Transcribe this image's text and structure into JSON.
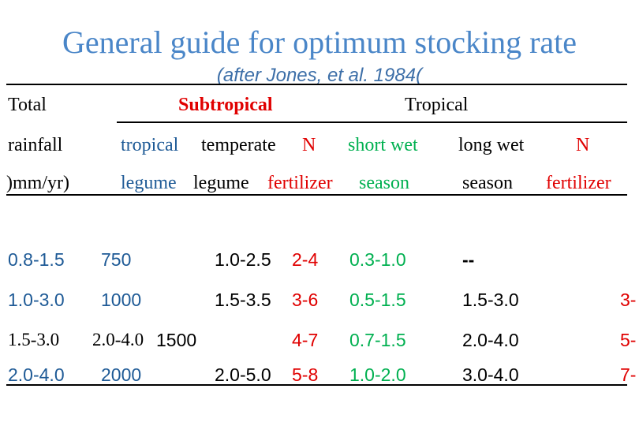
{
  "header": {
    "title": "General guide for optimum stocking rate",
    "subtitle": "(after Jones, et al. 1984("
  },
  "colors": {
    "title": "#4a86c8",
    "blue": "#1e5a96",
    "red": "#e00000",
    "green": "#00b050",
    "black": "#000000"
  },
  "table": {
    "col_headers": {
      "total": "Total",
      "rainfall": "rainfall",
      "units": ")mm/yr)",
      "subtropical": "Subtropical",
      "tropical": "Tropical",
      "sub_tropical": "tropical",
      "sub_temperate": "temperate",
      "sub_n": "N",
      "sub_legume1": "legume",
      "sub_legume2": "legume",
      "sub_fertilizer": "fertilizer",
      "tr_short_wet": "short wet",
      "tr_season1": "season",
      "tr_long_wet": "long wet",
      "tr_season2": "season",
      "tr_n": "N",
      "tr_fertilizer": "fertilizer"
    },
    "rows": [
      {
        "rainfall": "0.8-1.5",
        "tropical_legume": "750",
        "temperate_legume": "1.0-2.5",
        "n_fert": "2-4",
        "short_wet": "0.3-1.0",
        "long_wet": "--",
        "tr_n": ""
      },
      {
        "rainfall": "1.0-3.0",
        "tropical_legume": "1000",
        "temperate_legume": "1.5-3.5",
        "n_fert": "3-6",
        "short_wet": "0.5-1.5",
        "long_wet": "1.5-3.0",
        "tr_n": "3-"
      },
      {
        "rainfall": "1.5-3.0",
        "rainfall_b": "2.0-4.0",
        "tropical_legume": "1500",
        "temperate_legume": "",
        "n_fert": "4-7",
        "short_wet": "0.7-1.5",
        "long_wet": "2.0-4.0",
        "tr_n": "5-"
      },
      {
        "rainfall": "2.0-4.0",
        "tropical_legume": "2000",
        "temperate_legume": "2.0-5.0",
        "n_fert": "5-8",
        "short_wet": "1.0-2.0",
        "long_wet": "3.0-4.0",
        "tr_n": "7-"
      }
    ]
  }
}
